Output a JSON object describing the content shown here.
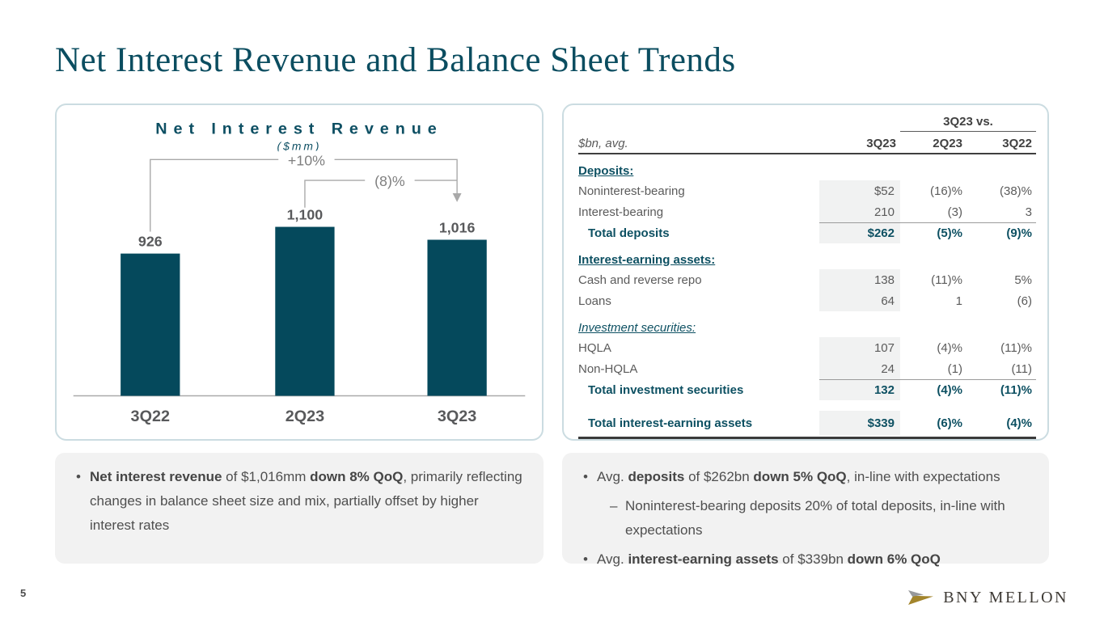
{
  "title": "Net Interest Revenue and Balance Sheet Trends",
  "colors": {
    "accent_teal": "#0D5062",
    "bar_teal": "#05495C",
    "gray_text": "#58595B",
    "line_gray": "#A9A9A9",
    "box_gray": "#F2F2F2",
    "shaded_col": "#F1F2F2",
    "logo_gold": "#A3852C",
    "logo_gray": "#97999C"
  },
  "chart_data": {
    "type": "bar",
    "title": "Net Interest Revenue",
    "subtitle": "($mm)",
    "categories": [
      "3Q22",
      "2Q23",
      "3Q23"
    ],
    "values": [
      926,
      1100,
      1016
    ],
    "value_labels": [
      "926",
      "1,100",
      "1,016"
    ],
    "ylim": [
      0,
      1160
    ],
    "grid": false,
    "legend": "none",
    "bar_color": "#05495C",
    "annotations": [
      {
        "label": "+10%",
        "from": "3Q22",
        "to": "3Q23"
      },
      {
        "label": "(8)%",
        "from": "2Q23",
        "to": "3Q23"
      }
    ]
  },
  "table": {
    "group_header": "3Q23 vs.",
    "unit_label": "$bn, avg.",
    "columns": [
      "3Q23",
      "2Q23",
      "3Q22"
    ],
    "rows": [
      {
        "type": "section",
        "label": "Deposits:"
      },
      {
        "type": "data",
        "label": "Noninterest-bearing",
        "v": [
          "$52",
          "(16)%",
          "(38)%"
        ]
      },
      {
        "type": "data",
        "label": "Interest-bearing",
        "v": [
          "210",
          "(3)",
          "3"
        ]
      },
      {
        "type": "total",
        "label": "Total deposits",
        "v": [
          "$262",
          "(5)%",
          "(9)%"
        ],
        "overline": true
      },
      {
        "type": "section",
        "label": "Interest-earning assets:"
      },
      {
        "type": "data",
        "label": "Cash and reverse repo",
        "v": [
          "138",
          "(11)%",
          "5%"
        ]
      },
      {
        "type": "data",
        "label": "Loans",
        "v": [
          "64",
          "1",
          "(6)"
        ]
      },
      {
        "type": "section",
        "label": "Investment securities:",
        "italic": true
      },
      {
        "type": "data",
        "label": "HQLA",
        "v": [
          "107",
          "(4)%",
          "(11)%"
        ]
      },
      {
        "type": "data",
        "label": "Non-HQLA",
        "v": [
          "24",
          "(1)",
          "(11)"
        ]
      },
      {
        "type": "total",
        "label": "Total investment securities",
        "v": [
          "132",
          "(4)%",
          "(11)%"
        ],
        "overline": true
      },
      {
        "type": "grand",
        "label": "Total interest-earning assets",
        "v": [
          "$339",
          "(6)%",
          "(4)%"
        ]
      }
    ]
  },
  "notes_left": {
    "bullets": [
      {
        "level": 1,
        "segments": [
          {
            "t": "Net interest revenue",
            "b": true
          },
          {
            "t": " of $1,016mm ",
            "b": false
          },
          {
            "t": "down 8% QoQ",
            "b": true
          },
          {
            "t": ", primarily reflecting changes in balance sheet size and mix, partially offset by higher interest rates",
            "b": false
          }
        ]
      }
    ]
  },
  "notes_right": {
    "bullets": [
      {
        "level": 1,
        "segments": [
          {
            "t": "Avg. ",
            "b": false
          },
          {
            "t": "deposits",
            "b": true
          },
          {
            "t": " of $262bn ",
            "b": false
          },
          {
            "t": "down 5% QoQ",
            "b": true
          },
          {
            "t": ", in-line with expectations",
            "b": false
          }
        ]
      },
      {
        "level": 2,
        "segments": [
          {
            "t": "Noninterest-bearing deposits 20% of total deposits, in-line with expectations",
            "b": false
          }
        ]
      },
      {
        "level": 1,
        "segments": [
          {
            "t": "Avg. ",
            "b": false
          },
          {
            "t": "interest-earning assets",
            "b": true
          },
          {
            "t": " of $339bn ",
            "b": false
          },
          {
            "t": "down 6% QoQ",
            "b": true
          }
        ]
      }
    ]
  },
  "footer": {
    "page_number": "5",
    "logo_text": "BNY MELLON"
  }
}
